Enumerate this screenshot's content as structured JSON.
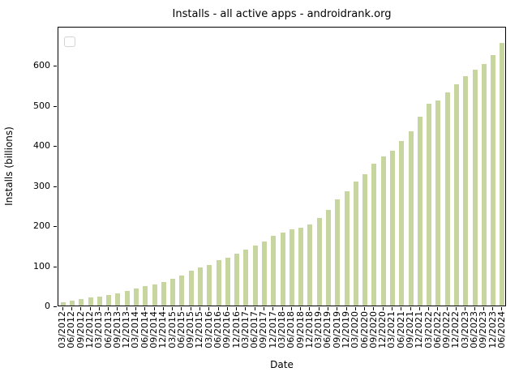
{
  "figure": {
    "background": "#ffffff",
    "title": "Installs - all active apps - androidrank.org",
    "xlabel": "Date",
    "ylabel": "Installs (billions)"
  },
  "legend": {
    "visible": true,
    "entries": []
  },
  "chart_data": {
    "type": "bar",
    "title": "Installs - all active apps - androidrank.org",
    "xlabel": "Date",
    "ylabel": "Installs (billions)",
    "bar_color": "#c7d69e",
    "grid": false,
    "legend_position": "upper left",
    "legend_entries": [],
    "ylim": [
      0,
      697
    ],
    "yticks": [
      0,
      100,
      200,
      300,
      400,
      500,
      600
    ],
    "categories": [
      "03/2012",
      "06/2012",
      "09/2012",
      "12/2012",
      "03/2013",
      "06/2013",
      "09/2013",
      "12/2013",
      "03/2014",
      "06/2014",
      "09/2014",
      "12/2014",
      "03/2015",
      "06/2015",
      "09/2015",
      "12/2015",
      "03/2016",
      "06/2016",
      "09/2016",
      "12/2016",
      "03/2017",
      "06/2017",
      "09/2017",
      "12/2017",
      "03/2018",
      "06/2018",
      "09/2018",
      "12/2018",
      "03/2019",
      "06/2019",
      "09/2019",
      "12/2019",
      "03/2020",
      "06/2020",
      "09/2020",
      "12/2020",
      "03/2021",
      "06/2021",
      "09/2021",
      "12/2021",
      "03/2022",
      "06/2022",
      "09/2022",
      "12/2022",
      "03/2023",
      "06/2023",
      "09/2023",
      "12/2023",
      "06/2024"
    ],
    "values": [
      8,
      12,
      16,
      20,
      22,
      26,
      31,
      36,
      43,
      48,
      52,
      58,
      67,
      75,
      86,
      94,
      102,
      113,
      119,
      130,
      140,
      150,
      160,
      174,
      182,
      189,
      193,
      203,
      218,
      238,
      264,
      284,
      309,
      327,
      354,
      371,
      386,
      410,
      434,
      471,
      504,
      512,
      531,
      551,
      572,
      587,
      602,
      624,
      655
    ]
  }
}
